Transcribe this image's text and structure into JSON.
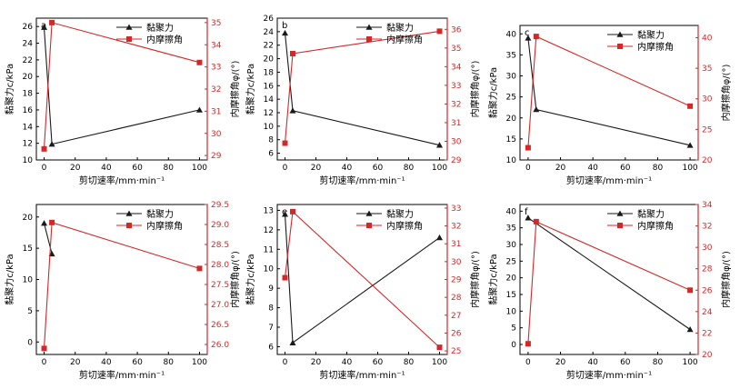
{
  "colors": {
    "cohesion": "#1a1a1a",
    "friction": "#d62728",
    "axis_left": "#000000",
    "axis_right": "#d62728"
  },
  "chart_data": [
    {
      "type": "line",
      "panel_label": "a",
      "x": [
        0,
        5,
        100
      ],
      "xlabel": "剪切速率/mm·min⁻¹",
      "ylabel": "黏聚力c/kPa",
      "ylabel2": "内摩擦角φ/(°)",
      "xlim": [
        -5,
        105
      ],
      "xticks": [
        0,
        20,
        40,
        60,
        80,
        100
      ],
      "ylim": [
        10,
        27
      ],
      "yticks": [
        10,
        12,
        14,
        16,
        18,
        20,
        22,
        24,
        26
      ],
      "y2lim": [
        28.8,
        35.2
      ],
      "y2ticks": [
        29,
        30,
        31,
        32,
        33,
        34,
        35
      ],
      "series": [
        {
          "name": "黏聚力",
          "axis": "left",
          "marker": "triangle",
          "values": [
            25.9,
            11.9,
            16.0
          ]
        },
        {
          "name": "内摩擦角",
          "axis": "right",
          "marker": "square",
          "values": [
            29.3,
            35.0,
            33.2
          ]
        }
      ],
      "legend": "top-right"
    },
    {
      "type": "line",
      "panel_label": "b",
      "x": [
        0,
        5,
        100
      ],
      "xlabel": "剪切速率/mm·min⁻¹",
      "ylabel": "黏聚力c/kPa",
      "ylabel2": "内摩擦角φ/(°)",
      "xlim": [
        -5,
        105
      ],
      "xticks": [
        0,
        20,
        40,
        60,
        80,
        100
      ],
      "ylim": [
        5,
        26
      ],
      "yticks": [
        6,
        8,
        10,
        12,
        14,
        16,
        18,
        20,
        22,
        24,
        26
      ],
      "y2lim": [
        29,
        36.6
      ],
      "y2ticks": [
        29,
        30,
        31,
        32,
        33,
        34,
        35,
        36
      ],
      "series": [
        {
          "name": "黏聚力",
          "axis": "left",
          "marker": "triangle",
          "values": [
            23.8,
            12.3,
            7.2
          ]
        },
        {
          "name": "内摩擦角",
          "axis": "right",
          "marker": "square",
          "values": [
            29.9,
            34.7,
            35.9
          ]
        }
      ],
      "legend": "top-right"
    },
    {
      "type": "line",
      "panel_label": "c",
      "x": [
        0,
        5,
        100
      ],
      "xlabel": "剪切速率/mm·min⁻¹",
      "ylabel": "黏聚力c/kPa",
      "ylabel2": "内摩擦角φ/(°)",
      "xlim": [
        -5,
        105
      ],
      "xticks": [
        0,
        20,
        40,
        60,
        80,
        100
      ],
      "ylim": [
        10,
        42
      ],
      "yticks": [
        10,
        15,
        20,
        25,
        30,
        35,
        40
      ],
      "y2lim": [
        20,
        42
      ],
      "y2ticks": [
        20,
        25,
        30,
        35,
        40
      ],
      "series": [
        {
          "name": "黏聚力",
          "axis": "left",
          "marker": "triangle",
          "values": [
            39.0,
            22.0,
            13.5
          ]
        },
        {
          "name": "内摩擦角",
          "axis": "right",
          "marker": "square",
          "values": [
            22.0,
            40.2,
            28.8
          ]
        }
      ],
      "legend": "top-right"
    },
    {
      "type": "line",
      "panel_label": "",
      "x": [
        0,
        5,
        100
      ],
      "xlabel": "剪切速率/mm·min⁻¹",
      "ylabel": "黏聚力c/kPa",
      "ylabel2": "内摩擦角φ/(°)",
      "xlim": [
        -5,
        105
      ],
      "xticks": [
        0,
        20,
        40,
        60,
        80,
        100
      ],
      "ylim": [
        -2,
        22
      ],
      "yticks": [
        0,
        5,
        10,
        15,
        20
      ],
      "y2lim": [
        25.75,
        29.5
      ],
      "y2ticks": [
        26.0,
        26.5,
        27.0,
        27.5,
        28.0,
        28.5,
        29.0,
        29.5
      ],
      "series": [
        {
          "name": "黏聚力",
          "axis": "left",
          "marker": "triangle",
          "values": [
            19.0,
            14.1,
            null
          ]
        },
        {
          "name": "内摩擦角",
          "axis": "right",
          "marker": "square",
          "values": [
            25.9,
            29.05,
            27.9
          ]
        }
      ],
      "legend": "top-right"
    },
    {
      "type": "line",
      "panel_label": "e",
      "x": [
        0,
        5,
        100
      ],
      "xlabel": "剪切速率/mm·min⁻¹",
      "ylabel": "黏聚力c/kPa",
      "ylabel2": "内摩擦角φ/(°)",
      "xlim": [
        -5,
        105
      ],
      "xticks": [
        0,
        20,
        40,
        60,
        80,
        100
      ],
      "ylim": [
        5.6,
        13.3
      ],
      "yticks": [
        6,
        7,
        8,
        9,
        10,
        11,
        12,
        13
      ],
      "y2lim": [
        24.8,
        33.2
      ],
      "y2ticks": [
        25,
        26,
        27,
        28,
        29,
        30,
        31,
        32,
        33
      ],
      "series": [
        {
          "name": "黏聚力",
          "axis": "left",
          "marker": "triangle",
          "values": [
            12.8,
            6.2,
            11.6
          ]
        },
        {
          "name": "内摩擦角",
          "axis": "right",
          "marker": "square",
          "values": [
            29.1,
            32.8,
            25.2
          ]
        }
      ],
      "legend": "top-right"
    },
    {
      "type": "line",
      "panel_label": "f",
      "x": [
        0,
        5,
        100
      ],
      "xlabel": "剪切速率/mm·min⁻¹",
      "ylabel": "黏聚力c/kPa",
      "ylabel2": "内摩擦角φ/(°)",
      "xlim": [
        -5,
        105
      ],
      "xticks": [
        0,
        20,
        40,
        60,
        80,
        100
      ],
      "ylim": [
        -3,
        42
      ],
      "yticks": [
        0,
        5,
        10,
        15,
        20,
        25,
        30,
        35,
        40
      ],
      "y2lim": [
        20,
        34
      ],
      "y2ticks": [
        20,
        22,
        24,
        26,
        28,
        30,
        32,
        34
      ],
      "series": [
        {
          "name": "黏聚力",
          "axis": "left",
          "marker": "triangle",
          "values": [
            38.0,
            null,
            4.5
          ]
        },
        {
          "name": "内摩擦角",
          "axis": "right",
          "marker": "square",
          "values": [
            21.0,
            32.4,
            26.0
          ]
        }
      ],
      "legend": "top-right"
    }
  ]
}
